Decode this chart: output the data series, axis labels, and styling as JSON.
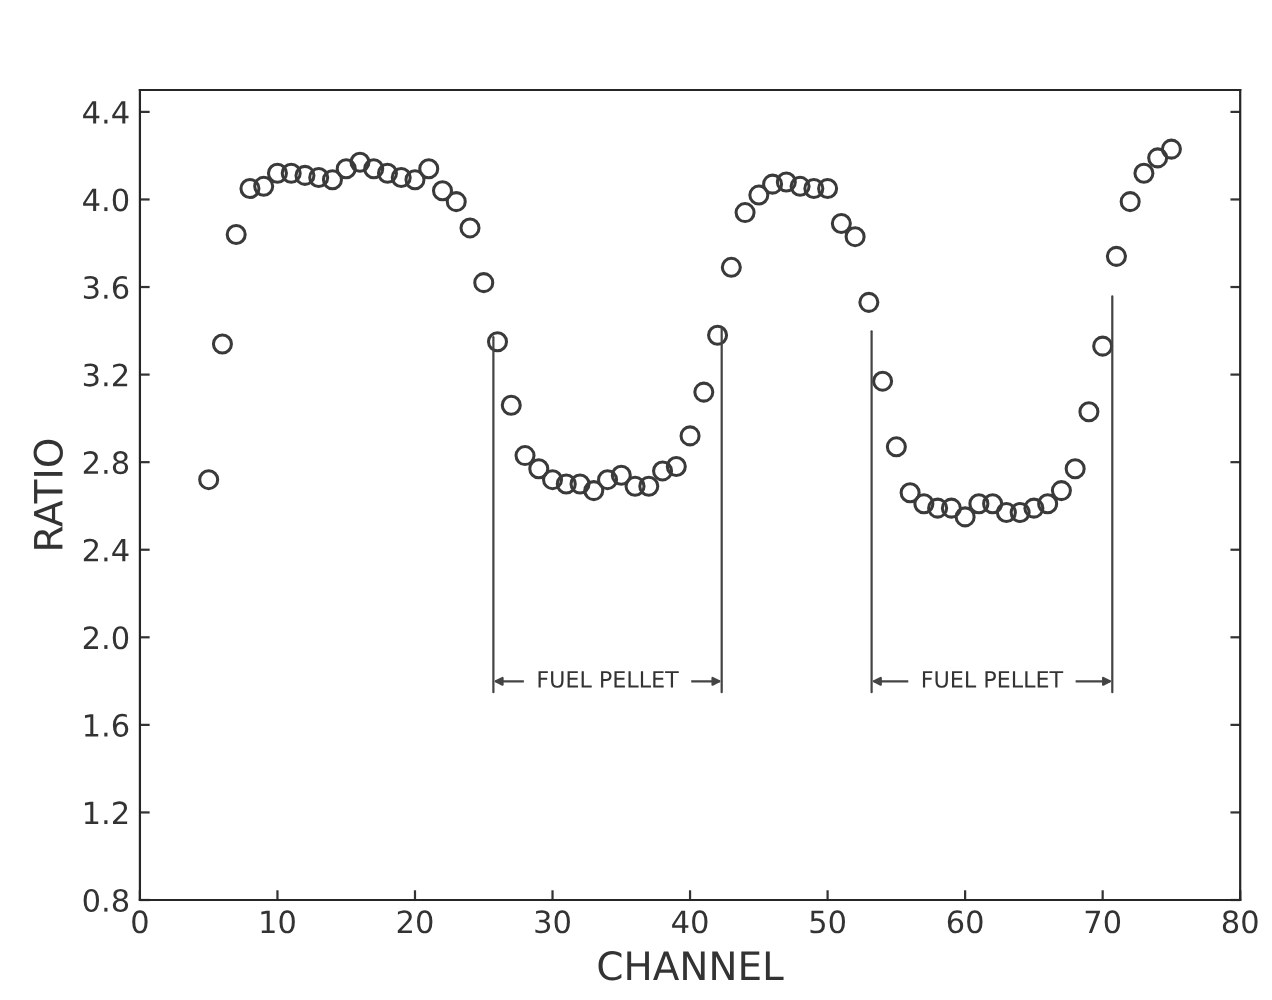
{
  "chart_data": {
    "type": "scatter",
    "xlabel": "CHANNEL",
    "ylabel": "RATIO",
    "xlim": [
      0,
      80
    ],
    "xticks": [
      0,
      10,
      20,
      30,
      40,
      50,
      60,
      70,
      80
    ],
    "ylim": [
      0.8,
      4.5
    ],
    "yticks": [
      0.8,
      1.2,
      1.6,
      {
        "value": 2,
        "label": "2.0"
      },
      2.4,
      2.8,
      3.2,
      3.6,
      {
        "value": 4,
        "label": "4.0"
      },
      4.4
    ],
    "grid": false,
    "marker": "circle",
    "series": [
      {
        "color": "#3a3a3a",
        "x": [
          5,
          6,
          7,
          8,
          9,
          10,
          11,
          12,
          13,
          14,
          15,
          16,
          17,
          18,
          19,
          20,
          21,
          22,
          23,
          24,
          25,
          26,
          27,
          28,
          29,
          30,
          31,
          32,
          33,
          34,
          35,
          36,
          37,
          38,
          39,
          40,
          41,
          42,
          43,
          44,
          45,
          46,
          47,
          48,
          49,
          50,
          51,
          52,
          53,
          54,
          55,
          56,
          57,
          58,
          59,
          60,
          61,
          62,
          63,
          64,
          65,
          66,
          67,
          68,
          69,
          70,
          71,
          72,
          73,
          74,
          75
        ],
        "values": [
          2.72,
          3.34,
          3.84,
          4.05,
          4.06,
          4.12,
          4.12,
          4.11,
          4.1,
          4.09,
          4.14,
          4.17,
          4.14,
          4.12,
          4.1,
          4.09,
          4.14,
          4.04,
          3.99,
          3.87,
          3.62,
          3.35,
          3.06,
          2.83,
          2.77,
          2.72,
          2.7,
          2.7,
          2.67,
          2.72,
          2.74,
          2.69,
          2.69,
          2.76,
          2.78,
          2.92,
          3.12,
          3.38,
          3.69,
          3.94,
          4.02,
          4.07,
          4.08,
          4.06,
          4.05,
          4.05,
          3.89,
          3.83,
          3.53,
          3.17,
          2.87,
          2.66,
          2.61,
          2.59,
          2.59,
          2.55,
          2.61,
          2.61,
          2.57,
          2.57,
          2.59,
          2.61,
          2.67,
          2.77,
          3.03,
          3.33,
          3.74,
          3.99,
          4.12,
          4.19,
          4.23
        ]
      }
    ],
    "ref_lines": [
      {
        "axis": "x",
        "value": 25.7,
        "color": "#444444"
      },
      {
        "axis": "x",
        "value": 42.3,
        "color": "#444444"
      },
      {
        "axis": "x",
        "value": 53.2,
        "color": "#444444"
      },
      {
        "axis": "x",
        "value": 70.7,
        "color": "#444444"
      }
    ],
    "annotations": [
      "FUEL PELLET",
      "FUEL PELLET"
    ]
  }
}
